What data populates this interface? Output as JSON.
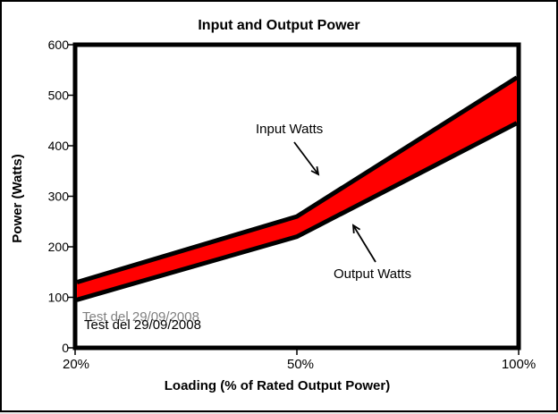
{
  "window": {
    "background": "#ffffff",
    "frame_border_color": "#000000"
  },
  "chart_data": {
    "type": "area",
    "title": "Input and Output Power",
    "xlabel": "Loading (% of Rated Output Power)",
    "ylabel": "Power (Watts)",
    "categories": [
      "20%",
      "50%",
      "100%"
    ],
    "series": [
      {
        "name": "Input Watts",
        "values": [
          130,
          260,
          535
        ],
        "line_color": "#000000"
      },
      {
        "name": "Output Watts",
        "values": [
          95,
          220,
          445
        ],
        "line_color": "#000000"
      }
    ],
    "fill_between_color": "#ff0000",
    "ylim": [
      0,
      600
    ],
    "yticks": [
      0,
      100,
      200,
      300,
      400,
      500,
      600
    ],
    "grid": false,
    "legend_position": "none"
  },
  "annotations": {
    "input_label": "Input Watts",
    "output_label": "Output Watts",
    "test_note": "Test del 29/09/2008",
    "test_note_color": "#3434bb",
    "test_note_shadow_color": "#c4c4c4"
  }
}
